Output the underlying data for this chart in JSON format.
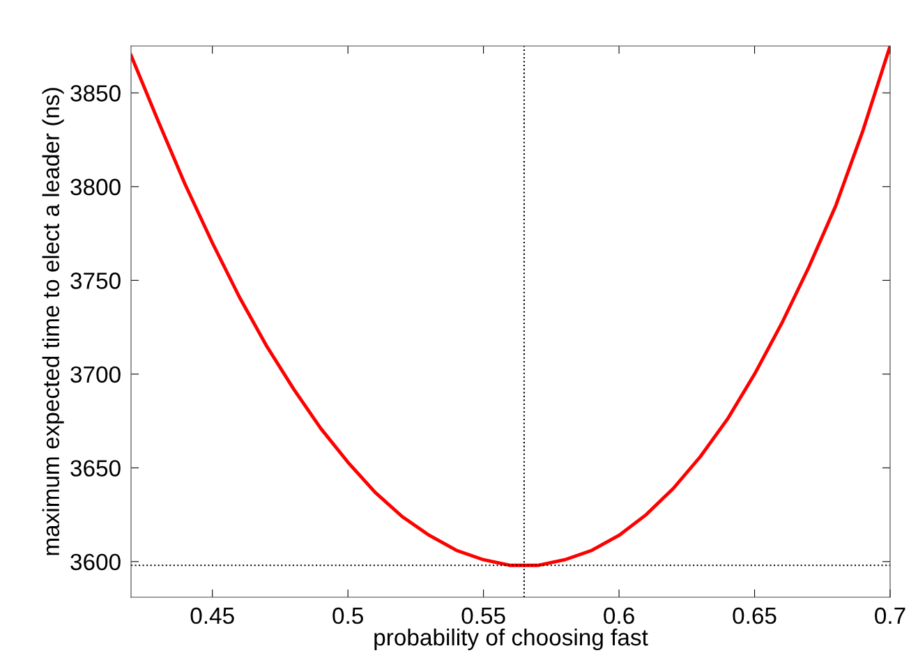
{
  "chart_data": {
    "type": "line",
    "xlabel": "probability of choosing fast",
    "ylabel": "maximum expected time to elect a leader (ns)",
    "x": [
      0.42,
      0.43,
      0.44,
      0.45,
      0.46,
      0.47,
      0.48,
      0.49,
      0.5,
      0.51,
      0.52,
      0.53,
      0.54,
      0.55,
      0.56,
      0.57,
      0.58,
      0.59,
      0.6,
      0.61,
      0.62,
      0.63,
      0.64,
      0.65,
      0.66,
      0.67,
      0.68,
      0.69,
      0.7
    ],
    "series": [
      {
        "color": "#ff0000",
        "values": [
          3870,
          3835,
          3801,
          3770,
          3741,
          3715,
          3692,
          3671,
          3653,
          3637,
          3624,
          3614,
          3606,
          3601,
          3598,
          3598,
          3601,
          3606,
          3614,
          3625,
          3639,
          3656,
          3676,
          3700,
          3727,
          3757,
          3790,
          3830,
          3875
        ]
      }
    ],
    "xlim": [
      0.42,
      0.7
    ],
    "ylim": [
      3581,
      3875
    ],
    "xticks": [
      0.45,
      0.5,
      0.55,
      0.6,
      0.65,
      0.7
    ],
    "yticks": [
      3600,
      3650,
      3700,
      3750,
      3800,
      3850
    ],
    "ref_lines": [
      {
        "axis": "x",
        "value": 0.565,
        "color": "#000000",
        "line_style": "dotted"
      },
      {
        "axis": "y",
        "value": 3598,
        "color": "#000000",
        "line_style": "dotted"
      }
    ],
    "grid": false,
    "legend": false,
    "marker": "none",
    "line_style": "solid"
  }
}
